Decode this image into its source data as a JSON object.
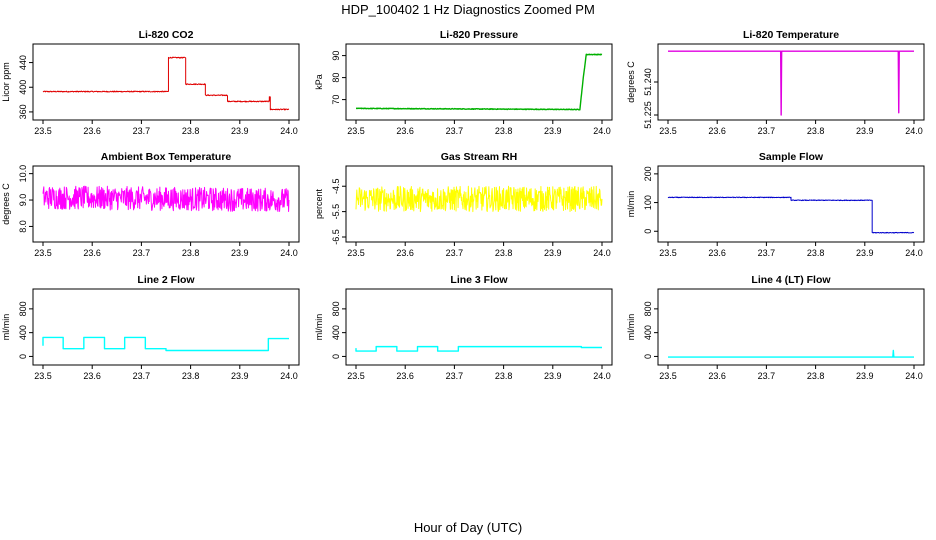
{
  "figure": {
    "title": "HDP_100402  1 Hz Diagnostics Zoomed PM",
    "xlabel": "Hour of Day (UTC)"
  },
  "chart_data": [
    {
      "type": "line",
      "title": "Li-820 CO2",
      "ylabel": "Licor ppm",
      "color": "#e00000",
      "xlim": [
        23.5,
        24.0
      ],
      "ylim": [
        355,
        462
      ],
      "xticks": [
        "23.5",
        "23.6",
        "23.7",
        "23.8",
        "23.9",
        "24.0"
      ],
      "yticks": [
        360,
        400,
        440
      ],
      "series": [
        {
          "x": [
            23.5,
            23.755,
            23.755,
            23.79,
            23.79,
            23.83,
            23.83,
            23.875,
            23.875,
            23.96,
            23.96,
            23.962,
            23.962,
            24.0
          ],
          "y": [
            393,
            393,
            448,
            448,
            405,
            405,
            387,
            387,
            377,
            377,
            385,
            385,
            364,
            364
          ],
          "noise": 0.8
        }
      ]
    },
    {
      "type": "line",
      "title": "Li-820 Pressure",
      "ylabel": "kPa",
      "color": "#00b000",
      "xlim": [
        23.5,
        24.0
      ],
      "ylim": [
        63,
        93
      ],
      "xticks": [
        "23.5",
        "23.6",
        "23.7",
        "23.8",
        "23.9",
        "24.0"
      ],
      "yticks": [
        70,
        80,
        90
      ],
      "series": [
        {
          "x": [
            23.5,
            23.955,
            23.962,
            23.968,
            24.0
          ],
          "y": [
            66,
            65.5,
            80,
            90.5,
            90.5
          ],
          "noise": 0.15
        }
      ]
    },
    {
      "type": "line",
      "title": "Li-820 Temperature",
      "ylabel": "degrees C",
      "color": "#e000e0",
      "xlim": [
        23.5,
        24.0
      ],
      "ylim": [
        51.225,
        51.255
      ],
      "xticks": [
        "23.5",
        "23.6",
        "23.7",
        "23.8",
        "23.9",
        "24.0"
      ],
      "yticks": [
        "51.225",
        "51.240"
      ],
      "series": [
        {
          "x": [
            23.5,
            23.729,
            23.73,
            23.731,
            23.968,
            23.969,
            23.97,
            24.0
          ],
          "y": [
            51.254,
            51.254,
            51.225,
            51.254,
            51.254,
            51.226,
            51.254,
            51.254
          ],
          "noise": 0
        }
      ]
    },
    {
      "type": "line",
      "title": "Ambient Box Temperature",
      "ylabel": "degrees C",
      "color": "#ff00ff",
      "xlim": [
        23.5,
        24.0
      ],
      "ylim": [
        7.6,
        10.1
      ],
      "xticks": [
        "23.5",
        "23.6",
        "23.7",
        "23.8",
        "23.9",
        "24.0"
      ],
      "yticks": [
        "8.0",
        "9.0",
        "10.0"
      ],
      "series": [
        {
          "x": [
            23.5,
            24.0
          ],
          "y": [
            9.1,
            9.0
          ],
          "noise": 0.45
        }
      ]
    },
    {
      "type": "line",
      "title": "Gas Stream RH",
      "ylabel": "percent",
      "color": "#ffff00",
      "xlim": [
        23.5,
        24.0
      ],
      "ylim": [
        -6.5,
        -3.9
      ],
      "xticks": [
        "23.5",
        "23.6",
        "23.7",
        "23.8",
        "23.9",
        "24.0"
      ],
      "yticks": [
        "-6.5",
        "-5.5",
        "-4.5"
      ],
      "series": [
        {
          "x": [
            23.5,
            24.0
          ],
          "y": [
            -5.0,
            -5.0
          ],
          "noise": 0.5
        }
      ]
    },
    {
      "type": "line",
      "title": "Sample Flow",
      "ylabel": "ml/min",
      "color": "#0000cc",
      "xlim": [
        23.5,
        24.0
      ],
      "ylim": [
        -20,
        210
      ],
      "xticks": [
        "23.5",
        "23.6",
        "23.7",
        "23.8",
        "23.9",
        "24.0"
      ],
      "yticks": [
        0,
        100,
        200
      ],
      "series": [
        {
          "x": [
            23.5,
            23.75,
            23.75,
            23.915,
            23.915,
            24.0
          ],
          "y": [
            118,
            118,
            108,
            108,
            -5,
            -5
          ],
          "noise": 1.2
        }
      ]
    },
    {
      "type": "line",
      "title": "Line 2 Flow",
      "ylabel": "ml/min",
      "color": "#00ffff",
      "xlim": [
        23.5,
        24.0
      ],
      "ylim": [
        -60,
        1050
      ],
      "xticks": [
        "23.5",
        "23.6",
        "23.7",
        "23.8",
        "23.9",
        "24.0"
      ],
      "yticks": [
        0,
        400,
        800
      ],
      "series": [
        {
          "x": [
            23.5,
            23.5,
            23.541,
            23.541,
            23.583,
            23.583,
            23.625,
            23.625,
            23.666,
            23.666,
            23.708,
            23.708,
            23.75,
            23.75,
            23.958,
            23.958,
            24.0
          ],
          "y": [
            180,
            320,
            320,
            130,
            130,
            320,
            320,
            130,
            130,
            320,
            320,
            130,
            130,
            100,
            100,
            300,
            300
          ],
          "noise": 0
        }
      ]
    },
    {
      "type": "line",
      "title": "Line 3 Flow",
      "ylabel": "ml/min",
      "color": "#00ffff",
      "xlim": [
        23.5,
        24.0
      ],
      "ylim": [
        -60,
        1050
      ],
      "xticks": [
        "23.5",
        "23.6",
        "23.7",
        "23.8",
        "23.9",
        "24.0"
      ],
      "yticks": [
        0,
        400,
        800
      ],
      "series": [
        {
          "x": [
            23.5,
            23.5,
            23.541,
            23.541,
            23.583,
            23.583,
            23.625,
            23.625,
            23.666,
            23.666,
            23.708,
            23.708,
            23.958,
            23.958,
            24.0
          ],
          "y": [
            140,
            90,
            90,
            165,
            165,
            90,
            90,
            165,
            165,
            90,
            90,
            165,
            165,
            150,
            150
          ],
          "noise": 0
        }
      ]
    },
    {
      "type": "line",
      "title": "Line 4 (LT) Flow",
      "ylabel": "ml/min",
      "color": "#00ffff",
      "xlim": [
        23.5,
        24.0
      ],
      "ylim": [
        -60,
        1050
      ],
      "xticks": [
        "23.5",
        "23.6",
        "23.7",
        "23.8",
        "23.9",
        "24.0"
      ],
      "yticks": [
        0,
        400,
        800
      ],
      "series": [
        {
          "x": [
            23.5,
            23.957,
            23.958,
            23.959,
            23.962,
            24.0
          ],
          "y": [
            -10,
            -10,
            100,
            -10,
            -10,
            -10
          ],
          "noise": 0
        }
      ]
    }
  ]
}
